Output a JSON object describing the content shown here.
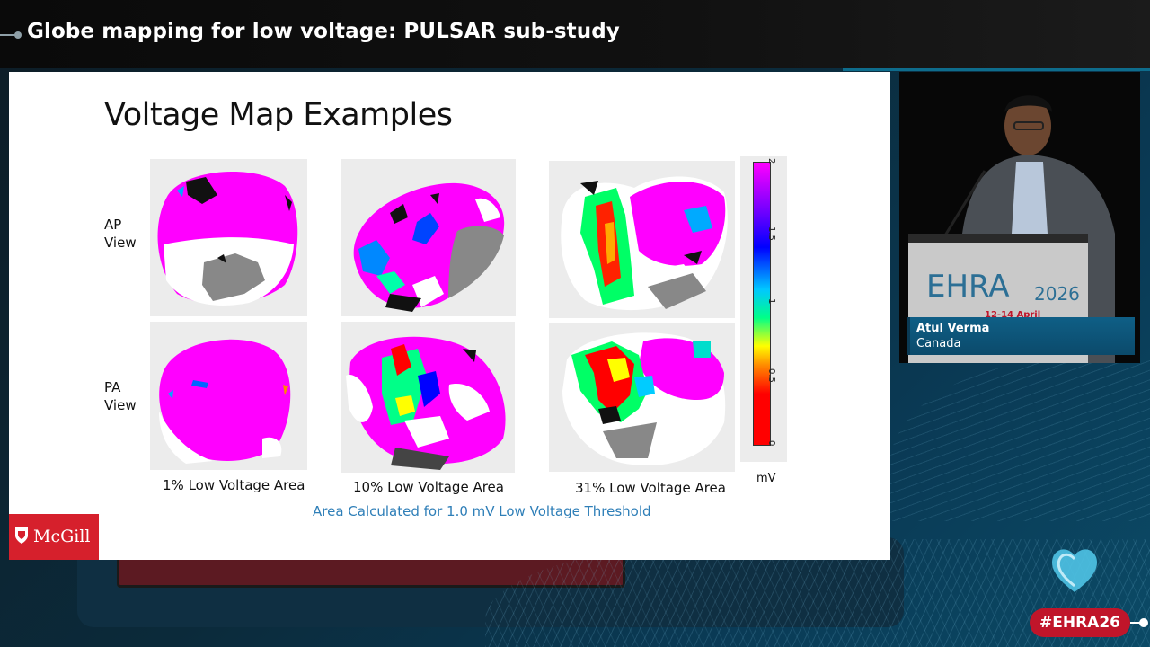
{
  "header": {
    "title": "Globe mapping for low voltage: PULSAR sub-study"
  },
  "slide": {
    "title": "Voltage Map Examples",
    "row_labels": [
      "AP\nView",
      "PA\nView"
    ],
    "captions": [
      "1% Low Voltage Area",
      "10% Low Voltage Area",
      "31% Low Voltage Area"
    ],
    "threshold_note": "Area Calculated for 1.0 mV Low Voltage Threshold",
    "colorbar": {
      "ticks": [
        "2",
        "1.5",
        "1",
        "0.5",
        "0"
      ],
      "unit": "mV"
    },
    "logo_text": "McGill"
  },
  "speaker": {
    "name": "Atul Verma",
    "country": "Canada",
    "podium_brand": "EHRA",
    "podium_year": "2026",
    "podium_dates": "12-14 April"
  },
  "hashtag": "#EHRA26",
  "colors": {
    "magenta": "#ff00ff",
    "accent_red": "#c0152a",
    "mcgill_red": "#d6202c",
    "threshold_blue": "#2f7fb8",
    "lower_third_blue": "#0f5f86"
  }
}
